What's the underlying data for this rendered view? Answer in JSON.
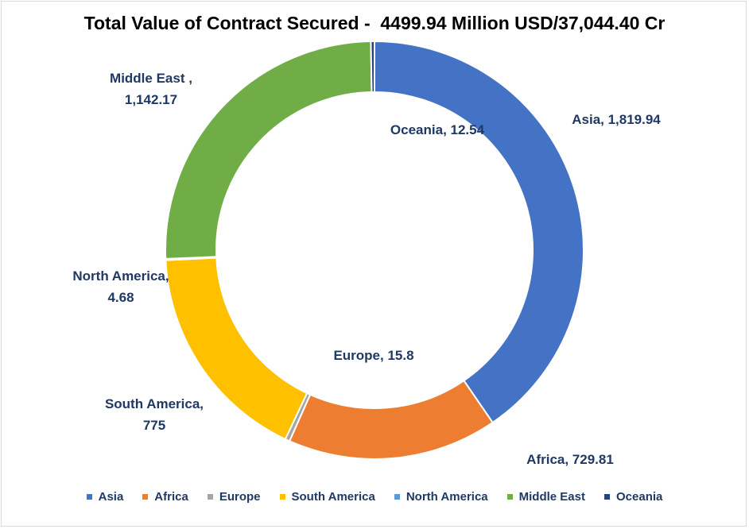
{
  "chart_data": {
    "type": "pie",
    "variant": "donut",
    "title": "Total Value of Contract Secured -  4499.94 Million USD/37,044.40 Cr",
    "categories": [
      "Asia",
      "Africa",
      "Europe",
      "South America",
      "North America",
      "Middle East",
      "Oceania"
    ],
    "values": [
      1819.94,
      729.81,
      15.8,
      775,
      4.68,
      1142.17,
      12.54
    ],
    "data_labels": [
      [
        "Asia, 1,819.94"
      ],
      [
        "Africa, 729.81"
      ],
      [
        "Europe, 15.8"
      ],
      [
        "South America,",
        "775"
      ],
      [
        "North America,",
        "4.68"
      ],
      [
        "Middle East ,",
        "1,142.17"
      ],
      [
        "Oceania, 12.54"
      ]
    ],
    "colors": [
      "#4472c4",
      "#ed7d31",
      "#a5a5a5",
      "#ffc000",
      "#5b9bd5",
      "#70ad47",
      "#264478"
    ],
    "legend_position": "bottom"
  }
}
